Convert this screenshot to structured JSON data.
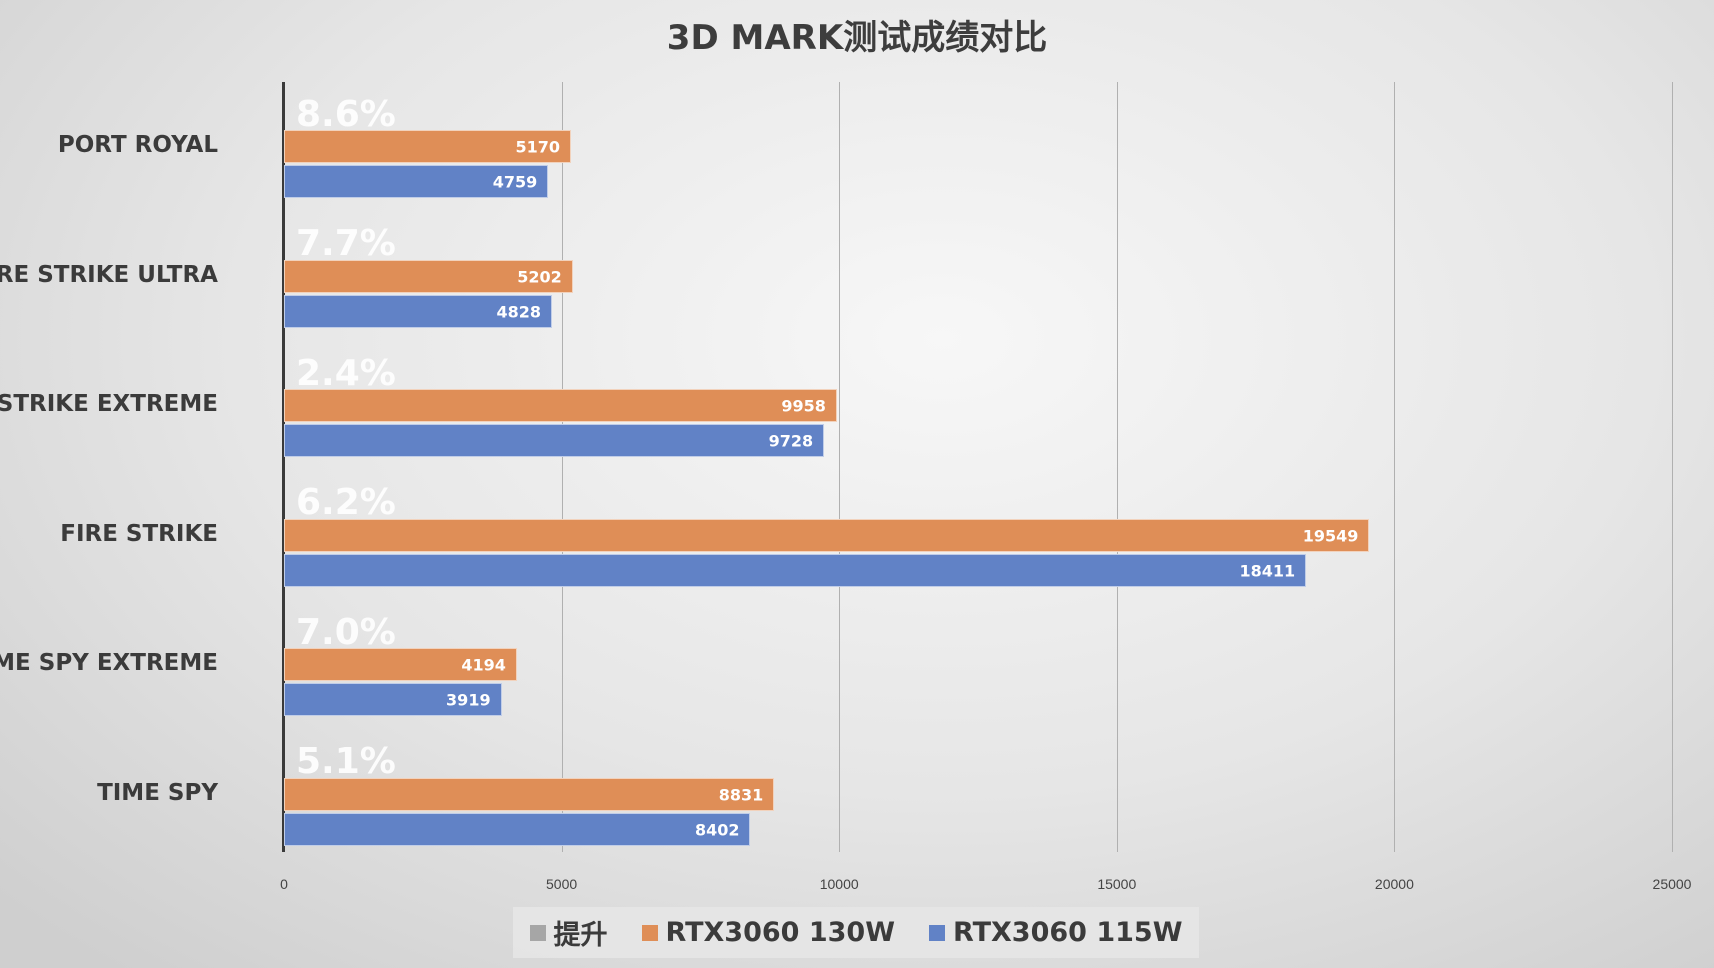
{
  "chart_data": {
    "type": "bar",
    "orientation": "horizontal",
    "title": "3D MARK测试成绩对比",
    "categories": [
      "PORT ROYAL",
      "FIRE STRIKE ULTRA",
      "FIRE STRIKE EXTREME",
      "FIRE STRIKE",
      "TIME SPY EXTREME",
      "TIME SPY"
    ],
    "series": [
      {
        "name": "提升",
        "color": "#a6a6a6",
        "values": [
          "8.6%",
          "7.7%",
          "2.4%",
          "6.2%",
          "7.0%",
          "5.1%"
        ]
      },
      {
        "name": "RTX3060 130W",
        "color": "#df8e57",
        "values": [
          5170,
          5202,
          9958,
          19549,
          4194,
          8831
        ]
      },
      {
        "name": "RTX3060 115W",
        "color": "#6182c6",
        "values": [
          4759,
          4828,
          9728,
          18411,
          3919,
          8402
        ]
      }
    ],
    "xlabel": "",
    "ylabel": "",
    "xlim": [
      0,
      25000
    ],
    "xticks": [
      "0",
      "5000",
      "10000",
      "15000",
      "20000",
      "25000"
    ],
    "grid": true,
    "legend_position": "bottom"
  },
  "title": "3D MARK测试成绩对比",
  "xticks": [
    "0",
    "5000",
    "10000",
    "15000",
    "20000",
    "25000"
  ],
  "rows": [
    {
      "label": "PORT ROYAL",
      "pct": "8.6%",
      "a": "5170",
      "b": "4759"
    },
    {
      "label": "FIRE STRIKE ULTRA",
      "pct": "7.7%",
      "a": "5202",
      "b": "4828"
    },
    {
      "label": "FIRE STRIKE EXTREME",
      "pct": "2.4%",
      "a": "9958",
      "b": "9728"
    },
    {
      "label": "FIRE STRIKE",
      "pct": "6.2%",
      "a": "19549",
      "b": "18411"
    },
    {
      "label": "TIME SPY EXTREME",
      "pct": "7.0%",
      "a": "4194",
      "b": "3919"
    },
    {
      "label": "TIME SPY",
      "pct": "5.1%",
      "a": "8831",
      "b": "8402"
    }
  ],
  "legend": [
    {
      "label": "提升",
      "color": "#a6a6a6"
    },
    {
      "label": "RTX3060 130W",
      "color": "#df8e57"
    },
    {
      "label": "RTX3060 115W",
      "color": "#6182c6"
    }
  ]
}
